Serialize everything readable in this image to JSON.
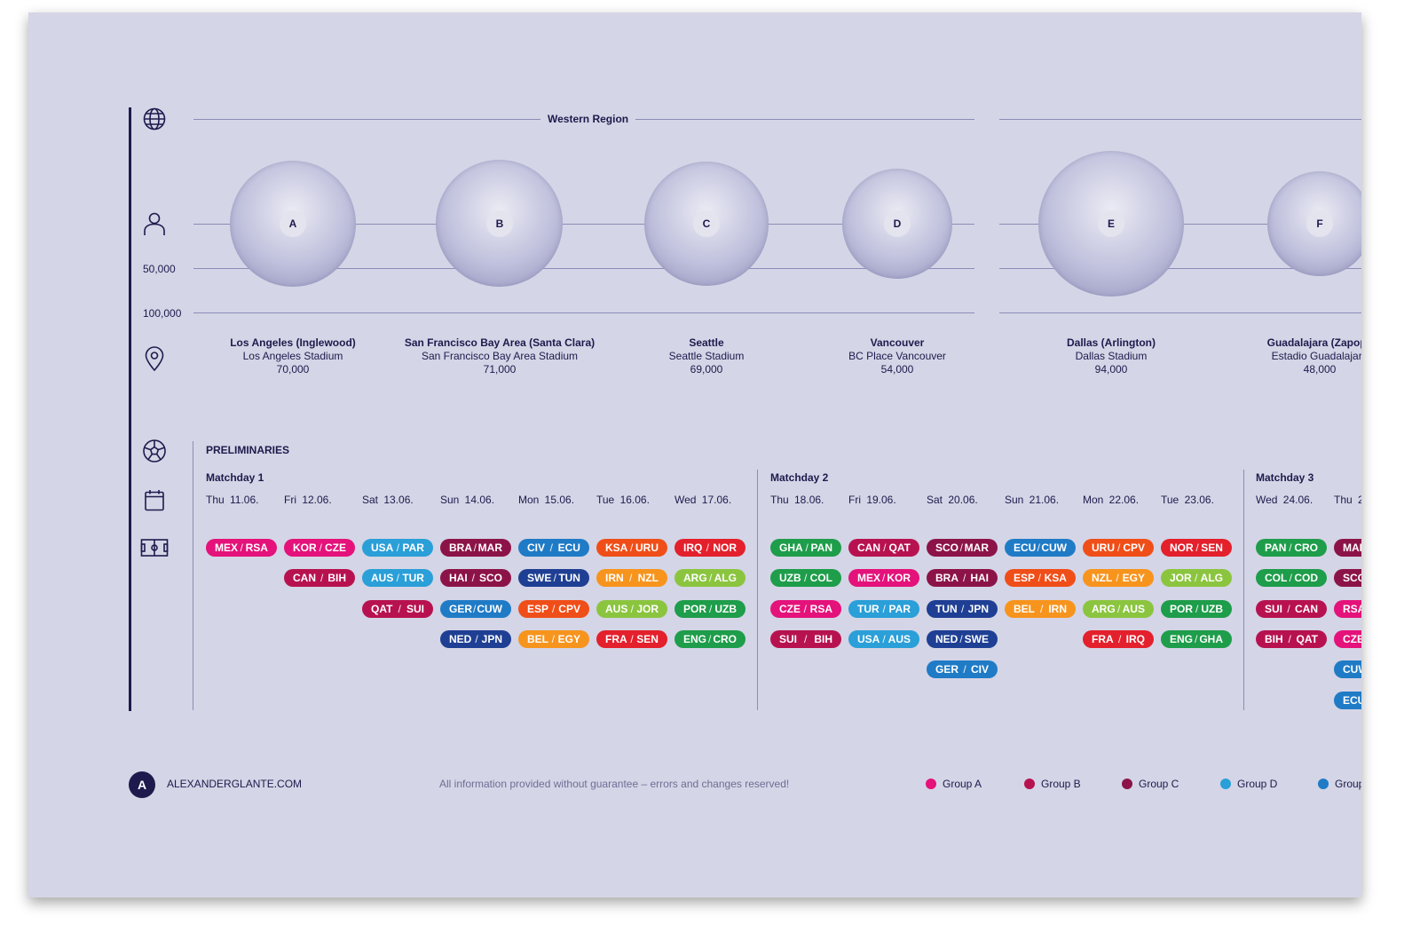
{
  "header": {
    "region_label": "Western Region"
  },
  "axis": {
    "tick_50k": "50,000",
    "tick_100k": "100,000"
  },
  "icons": [
    "globe-icon",
    "person-icon",
    "location-pin-icon",
    "soccer-ball-icon",
    "calendar-icon",
    "soccer-field-icon"
  ],
  "stadiums": [
    {
      "letter": "A",
      "city": "Los Angeles (Inglewood)",
      "stadium": "Los Angeles Stadium",
      "capacity": "70,000",
      "capacity_value": 70000
    },
    {
      "letter": "B",
      "city": "San Francisco Bay Area (Santa Clara)",
      "stadium": "San Francisco Bay Area Stadium",
      "capacity": "71,000",
      "capacity_value": 71000
    },
    {
      "letter": "C",
      "city": "Seattle",
      "stadium": "Seattle Stadium",
      "capacity": "69,000",
      "capacity_value": 69000
    },
    {
      "letter": "D",
      "city": "Vancouver",
      "stadium": "BC Place Vancouver",
      "capacity": "54,000",
      "capacity_value": 54000
    },
    {
      "letter": "E",
      "city": "Dallas (Arlington)",
      "stadium": "Dallas Stadium",
      "capacity": "94,000",
      "capacity_value": 94000
    },
    {
      "letter": "F",
      "city": "Guadalajara (Zapopa",
      "stadium": "Estadio Guadalajara",
      "capacity": "48,000",
      "capacity_value": 48000
    }
  ],
  "schedule": {
    "section_title": "PRELIMINARIES",
    "matchdays": [
      {
        "label": "Matchday 1",
        "days": [
          "Thu  11.06.",
          "Fri  12.06.",
          "Sat  13.06.",
          "Sun  14.06.",
          "Mon  15.06.",
          "Tue  16.06.",
          "Wed  17.06."
        ]
      },
      {
        "label": "Matchday 2",
        "days": [
          "Thu  18.06.",
          "Fri  19.06.",
          "Sat  20.06.",
          "Sun  21.06.",
          "Mon  22.06.",
          "Tue  23.06."
        ]
      },
      {
        "label": "Matchday 3",
        "days": [
          "Wed  24.06.",
          "Thu  2"
        ]
      }
    ],
    "columns": [
      [
        {
          "home": "MEX",
          "away": "RSA",
          "color": "#e4127a"
        }
      ],
      [
        {
          "home": "KOR",
          "away": "CZE",
          "color": "#e4127a"
        },
        {
          "home": "CAN",
          "away": "BIH",
          "color": "#b7124f"
        }
      ],
      [
        {
          "home": "USA",
          "away": "PAR",
          "color": "#2a9fd8"
        },
        {
          "home": "AUS",
          "away": "TUR",
          "color": "#2a9fd8"
        },
        {
          "home": "QAT",
          "away": "SUI",
          "color": "#b7124f"
        }
      ],
      [
        {
          "home": "BRA",
          "away": "MAR",
          "color": "#8c1348"
        },
        {
          "home": "HAI",
          "away": "SCO",
          "color": "#8c1348"
        },
        {
          "home": "GER",
          "away": "CUW",
          "color": "#1f7bc6"
        },
        {
          "home": "NED",
          "away": "JPN",
          "color": "#1e3f93"
        }
      ],
      [
        {
          "home": "CIV",
          "away": "ECU",
          "color": "#1f7bc6"
        },
        {
          "home": "SWE",
          "away": "TUN",
          "color": "#1e3f93"
        },
        {
          "home": "ESP",
          "away": "CPV",
          "color": "#f04e18"
        },
        {
          "home": "BEL",
          "away": "EGY",
          "color": "#f7941d"
        }
      ],
      [
        {
          "home": "KSA",
          "away": "URU",
          "color": "#f04e18"
        },
        {
          "home": "IRN",
          "away": "NZL",
          "color": "#f7941d"
        },
        {
          "home": "AUS",
          "away": "JOR",
          "color": "#8bc53f"
        },
        {
          "home": "FRA",
          "away": "SEN",
          "color": "#e3202c"
        }
      ],
      [
        {
          "home": "IRQ",
          "away": "NOR",
          "color": "#e3202c"
        },
        {
          "home": "ARG",
          "away": "ALG",
          "color": "#8bc53f"
        },
        {
          "home": "POR",
          "away": "UZB",
          "color": "#1e9d4a"
        },
        {
          "home": "ENG",
          "away": "CRO",
          "color": "#1e9d4a"
        }
      ],
      [
        {
          "home": "GHA",
          "away": "PAN",
          "color": "#1e9d4a"
        },
        {
          "home": "UZB",
          "away": "COL",
          "color": "#1e9d4a"
        },
        {
          "home": "CZE",
          "away": "RSA",
          "color": "#e4127a"
        },
        {
          "home": "SUI",
          "away": "BIH",
          "color": "#b7124f"
        }
      ],
      [
        {
          "home": "CAN",
          "away": "QAT",
          "color": "#b7124f"
        },
        {
          "home": "MEX",
          "away": "KOR",
          "color": "#e4127a"
        },
        {
          "home": "TUR",
          "away": "PAR",
          "color": "#2a9fd8"
        },
        {
          "home": "USA",
          "away": "AUS",
          "color": "#2a9fd8"
        }
      ],
      [
        {
          "home": "SCO",
          "away": "MAR",
          "color": "#8c1348"
        },
        {
          "home": "BRA",
          "away": "HAI",
          "color": "#8c1348"
        },
        {
          "home": "TUN",
          "away": "JPN",
          "color": "#1e3f93"
        },
        {
          "home": "NED",
          "away": "SWE",
          "color": "#1e3f93"
        },
        {
          "home": "GER",
          "away": "CIV",
          "color": "#1f7bc6"
        }
      ],
      [
        {
          "home": "ECU",
          "away": "CUW",
          "color": "#1f7bc6"
        },
        {
          "home": "ESP",
          "away": "KSA",
          "color": "#f04e18"
        },
        {
          "home": "BEL",
          "away": "IRN",
          "color": "#f7941d"
        }
      ],
      [
        {
          "home": "URU",
          "away": "CPV",
          "color": "#f04e18"
        },
        {
          "home": "NZL",
          "away": "EGY",
          "color": "#f7941d"
        },
        {
          "home": "ARG",
          "away": "AUS",
          "color": "#8bc53f"
        },
        {
          "home": "FRA",
          "away": "IRQ",
          "color": "#e3202c"
        }
      ],
      [
        {
          "home": "NOR",
          "away": "SEN",
          "color": "#e3202c"
        },
        {
          "home": "JOR",
          "away": "ALG",
          "color": "#8bc53f"
        },
        {
          "home": "POR",
          "away": "UZB",
          "color": "#1e9d4a"
        },
        {
          "home": "ENG",
          "away": "GHA",
          "color": "#1e9d4a"
        }
      ],
      [
        {
          "home": "PAN",
          "away": "CRO",
          "color": "#1e9d4a"
        },
        {
          "home": "COL",
          "away": "COD",
          "color": "#1e9d4a"
        },
        {
          "home": "SUI",
          "away": "CAN",
          "color": "#b7124f"
        },
        {
          "home": "BIH",
          "away": "QAT",
          "color": "#b7124f"
        }
      ],
      [
        {
          "home": "MAR",
          "away": "",
          "color": "#8c1348"
        },
        {
          "home": "SCO",
          "away": "",
          "color": "#8c1348"
        },
        {
          "home": "RSA",
          "away": "",
          "color": "#e4127a"
        },
        {
          "home": "CZE",
          "away": "",
          "color": "#e4127a"
        },
        {
          "home": "CUW",
          "away": "",
          "color": "#1f7bc6"
        },
        {
          "home": "ECU",
          "away": "",
          "color": "#1f7bc6"
        }
      ]
    ]
  },
  "footer": {
    "logo_letter": "A",
    "site": "ALEXANDERGLANTE.COM",
    "disclaimer": "All information provided without guarantee – errors and changes reserved!",
    "legend": [
      {
        "label": "Group A",
        "color": "#e4127a"
      },
      {
        "label": "Group B",
        "color": "#b7124f"
      },
      {
        "label": "Group C",
        "color": "#8c1348"
      },
      {
        "label": "Group D",
        "color": "#2a9fd8"
      },
      {
        "label": "Group",
        "color": "#1f7bc6"
      }
    ]
  }
}
